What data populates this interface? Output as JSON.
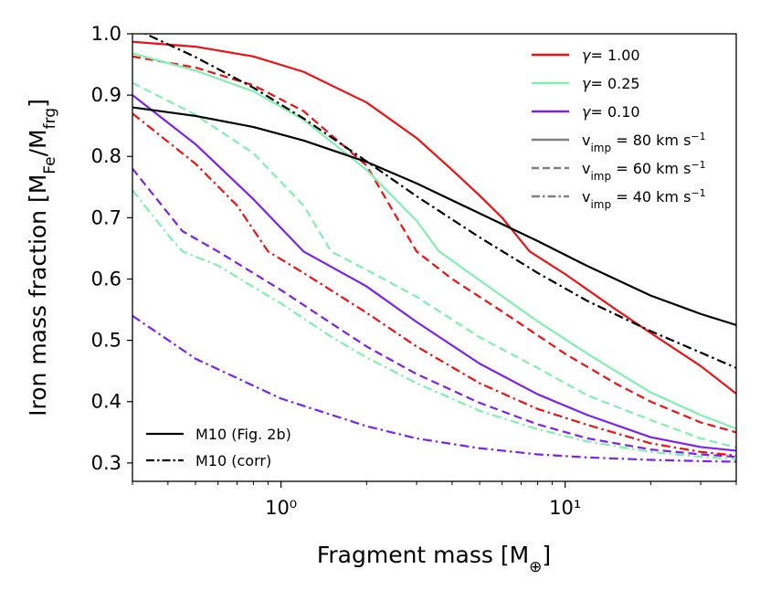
{
  "chart_data": {
    "type": "line",
    "title": "",
    "xlabel": "Fragment mass [M⊕]",
    "ylabel": "Iron mass fraction [MFe/Mfrg]",
    "xscale": "log",
    "xlim": [
      0.3,
      40
    ],
    "ylim": [
      0.27,
      1.0
    ],
    "yticks": [
      0.3,
      0.4,
      0.5,
      0.6,
      0.7,
      0.8,
      0.9,
      1.0
    ],
    "xticks_major": [
      1,
      10
    ],
    "xtick_labels": [
      "10⁰",
      "10¹"
    ],
    "legend_gamma": [
      {
        "label": "γ= 1.00",
        "color": "#ee1111"
      },
      {
        "label": "γ= 0.25",
        "color": "#7ff0b0"
      },
      {
        "label": "γ= 0.10",
        "color": "#7b22ee"
      }
    ],
    "legend_vimp": [
      {
        "label": "vimp = 80 km s⁻¹",
        "style": "solid"
      },
      {
        "label": "vimp = 60 km s⁻¹",
        "style": "dashed"
      },
      {
        "label": "vimp = 40 km s⁻¹",
        "style": "dashdot"
      }
    ],
    "legend_models": [
      {
        "label": "M10 (Fig. 2b)",
        "style": "solid"
      },
      {
        "label": "M10 (corr)",
        "style": "dashdot"
      }
    ],
    "series": [
      {
        "name": "γ=1.00, v=80",
        "color": "#ee1111",
        "style": "solid",
        "x": [
          0.3,
          0.5,
          0.8,
          1.2,
          2,
          3,
          4,
          5,
          6,
          7.5,
          10,
          15,
          20,
          30,
          40
        ],
        "y": [
          0.987,
          0.979,
          0.963,
          0.938,
          0.888,
          0.83,
          0.778,
          0.736,
          0.7,
          0.645,
          0.608,
          0.551,
          0.512,
          0.458,
          0.413
        ]
      },
      {
        "name": "γ=1.00, v=60",
        "color": "#ee1111",
        "style": "dashed",
        "x": [
          0.3,
          0.5,
          0.8,
          1.2,
          2,
          3,
          4,
          6,
          10,
          15,
          20,
          30,
          40
        ],
        "y": [
          0.963,
          0.945,
          0.916,
          0.874,
          0.785,
          0.645,
          0.6,
          0.547,
          0.478,
          0.43,
          0.4,
          0.366,
          0.35
        ]
      },
      {
        "name": "γ=1.00, v=40",
        "color": "#ee1111",
        "style": "dashdot",
        "x": [
          0.3,
          0.5,
          0.7,
          0.9,
          1.2,
          2,
          3,
          5,
          8,
          12,
          20,
          30,
          40
        ],
        "y": [
          0.87,
          0.788,
          0.72,
          0.645,
          0.61,
          0.545,
          0.49,
          0.43,
          0.388,
          0.362,
          0.332,
          0.318,
          0.312
        ]
      },
      {
        "name": "γ=0.25, v=80",
        "color": "#7ff0b0",
        "style": "solid",
        "x": [
          0.3,
          0.5,
          0.8,
          1.2,
          2,
          3,
          3.6,
          5,
          8,
          12,
          20,
          30,
          40
        ],
        "y": [
          0.968,
          0.94,
          0.906,
          0.86,
          0.778,
          0.695,
          0.645,
          0.598,
          0.531,
          0.478,
          0.415,
          0.378,
          0.356
        ]
      },
      {
        "name": "γ=0.25, v=60",
        "color": "#7ff0b0",
        "style": "dashed",
        "x": [
          0.3,
          0.5,
          0.8,
          1.2,
          1.5,
          2,
          3,
          5,
          8,
          12,
          20,
          30,
          40
        ],
        "y": [
          0.92,
          0.868,
          0.805,
          0.72,
          0.645,
          0.615,
          0.571,
          0.505,
          0.455,
          0.41,
          0.37,
          0.34,
          0.325
        ]
      },
      {
        "name": "γ=0.25, v=40",
        "color": "#7ff0b0",
        "style": "dashdot",
        "x": [
          0.3,
          0.4,
          0.45,
          0.6,
          1,
          1.5,
          2,
          3,
          5,
          8,
          12,
          20,
          30,
          40
        ],
        "y": [
          0.745,
          0.672,
          0.645,
          0.622,
          0.56,
          0.506,
          0.472,
          0.43,
          0.385,
          0.355,
          0.335,
          0.318,
          0.31,
          0.306
        ]
      },
      {
        "name": "γ=0.10, v=80",
        "color": "#7b22ee",
        "style": "solid",
        "x": [
          0.3,
          0.5,
          0.8,
          1.2,
          2,
          3,
          5,
          8,
          12,
          20,
          30,
          40
        ],
        "y": [
          0.9,
          0.82,
          0.73,
          0.645,
          0.588,
          0.53,
          0.462,
          0.412,
          0.378,
          0.342,
          0.326,
          0.32
        ]
      },
      {
        "name": "γ=0.10, v=60",
        "color": "#7b22ee",
        "style": "dashed",
        "x": [
          0.3,
          0.45,
          0.6,
          1,
          1.5,
          2,
          3,
          5,
          8,
          12,
          20,
          30,
          40
        ],
        "y": [
          0.78,
          0.678,
          0.645,
          0.582,
          0.528,
          0.49,
          0.445,
          0.398,
          0.363,
          0.34,
          0.322,
          0.314,
          0.31
        ]
      },
      {
        "name": "γ=0.10, v=40",
        "color": "#7b22ee",
        "style": "dashdot",
        "x": [
          0.3,
          0.5,
          1,
          2,
          3,
          5,
          8,
          12,
          20,
          30,
          40
        ],
        "y": [
          0.54,
          0.47,
          0.405,
          0.36,
          0.34,
          0.324,
          0.314,
          0.309,
          0.305,
          0.303,
          0.302
        ]
      },
      {
        "name": "M10 (Fig. 2b)",
        "color": "#000000",
        "style": "solid",
        "x": [
          0.3,
          0.5,
          0.8,
          1.2,
          2,
          3,
          5,
          8,
          12,
          20,
          30,
          40
        ],
        "y": [
          0.88,
          0.866,
          0.848,
          0.826,
          0.791,
          0.756,
          0.707,
          0.662,
          0.621,
          0.573,
          0.543,
          0.525
        ]
      },
      {
        "name": "M10 (corr)",
        "color": "#000000",
        "style": "dashdot",
        "x": [
          0.3,
          0.5,
          0.8,
          1.2,
          2,
          3,
          5,
          8,
          12,
          20,
          30,
          40
        ],
        "y": [
          1.01,
          0.962,
          0.912,
          0.862,
          0.792,
          0.735,
          0.668,
          0.61,
          0.564,
          0.515,
          0.48,
          0.455
        ]
      }
    ]
  }
}
